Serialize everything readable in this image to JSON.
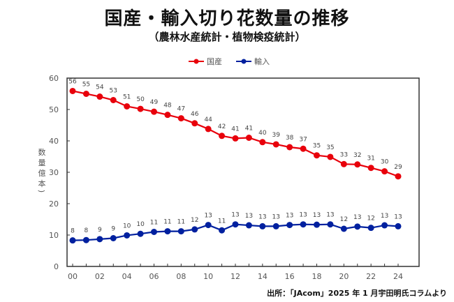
{
  "page": {
    "title": "国産・輸入切り花数量の推移",
    "subtitle": "（農林水産統計・植物検疫統計）",
    "source": "出所：「JAcom」2025 年 1 月宇田明氏コラムより"
  },
  "chart_data": {
    "type": "line",
    "title": "国産・輸入切り花数量の推移",
    "subtitle": "（農林水産統計・植物検疫統計）",
    "xlabel": "",
    "ylabel": "数量（億本）",
    "ylabel_chars": [
      "数",
      "量",
      "億",
      "本"
    ],
    "ylim": [
      0,
      60
    ],
    "yticks": [
      0,
      10,
      20,
      30,
      40,
      50,
      60
    ],
    "x": [
      "00",
      "01",
      "02",
      "03",
      "04",
      "05",
      "06",
      "07",
      "08",
      "09",
      "10",
      "11",
      "12",
      "13",
      "14",
      "15",
      "16",
      "17",
      "18",
      "19",
      "20",
      "21",
      "22",
      "23",
      "24"
    ],
    "xtick_labels": [
      "00",
      "02",
      "04",
      "06",
      "08",
      "10",
      "12",
      "14",
      "16",
      "18",
      "20",
      "22",
      "24"
    ],
    "legend_position": "top-center",
    "grid": false,
    "series": [
      {
        "name": "国産",
        "color": "#e8000b",
        "values": [
          56,
          55,
          54,
          53,
          51,
          50,
          49,
          48,
          47,
          46,
          44,
          42,
          41,
          41,
          40,
          39,
          38,
          37,
          35,
          35,
          33,
          32,
          31,
          30,
          29
        ],
        "plot_values": [
          55.9,
          55.0,
          54.1,
          53.0,
          51.0,
          50.2,
          49.3,
          48.3,
          47.2,
          45.6,
          43.8,
          41.6,
          40.8,
          41.0,
          39.6,
          38.9,
          38.0,
          37.5,
          35.4,
          34.9,
          32.6,
          32.5,
          31.4,
          30.3,
          28.7
        ]
      },
      {
        "name": "輸入",
        "color": "#00209f",
        "values": [
          8,
          8,
          9,
          9,
          10,
          10,
          11,
          11,
          11,
          12,
          13,
          11,
          13,
          13,
          13,
          13,
          13,
          13,
          13,
          13,
          12,
          13,
          12,
          13,
          13
        ],
        "plot_values": [
          8.3,
          8.4,
          8.7,
          9.0,
          9.9,
          10.4,
          11.0,
          11.2,
          11.2,
          11.8,
          13.2,
          11.5,
          13.4,
          13.1,
          12.8,
          12.8,
          13.2,
          13.4,
          13.3,
          13.4,
          12.0,
          12.7,
          12.3,
          13.1,
          12.8
        ]
      }
    ]
  }
}
